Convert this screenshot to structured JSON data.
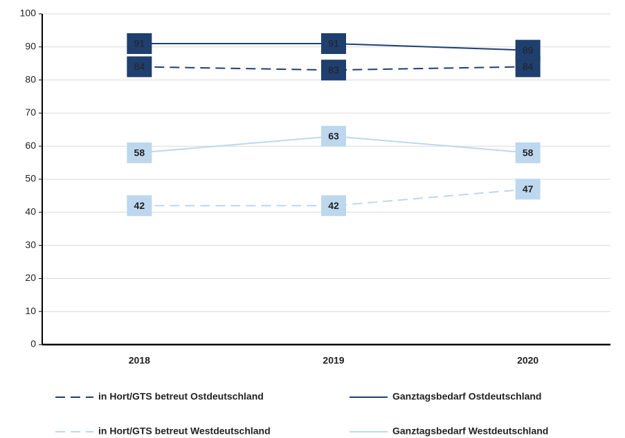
{
  "chart_data": {
    "type": "line",
    "categories": [
      "2018",
      "2019",
      "2020"
    ],
    "series": [
      {
        "name": "in Hort/GTS betreut Ostdeutschland",
        "color": "#1f3f6e",
        "line_style": "dashed",
        "values": [
          84,
          83,
          84
        ]
      },
      {
        "name": "Ganztagsbedarf  Ostdeutschland",
        "color": "#1f3f6e",
        "line_style": "solid",
        "values": [
          91,
          91,
          89
        ]
      },
      {
        "name": "in Hort/GTS betreut  Westdeutschland",
        "color": "#bdd7ee",
        "line_style": "dashed",
        "values": [
          42,
          42,
          47
        ]
      },
      {
        "name": "Ganztagsbedarf Westdeutschland",
        "color": "#bdd7ee",
        "line_style": "solid",
        "values": [
          58,
          63,
          58
        ]
      }
    ],
    "ylim": [
      0,
      100
    ],
    "yticks": [
      0,
      10,
      20,
      30,
      40,
      50,
      60,
      70,
      80,
      90,
      100
    ],
    "grid": true
  }
}
